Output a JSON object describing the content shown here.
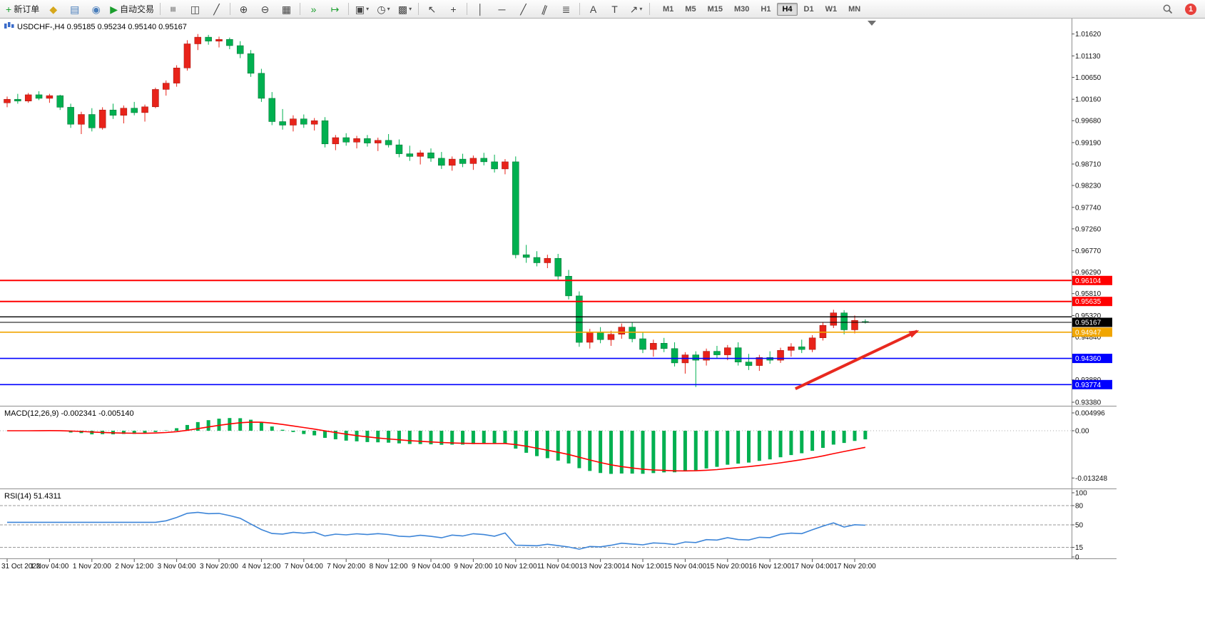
{
  "toolbar": {
    "items": [
      {
        "name": "new-order-button",
        "glyph": "+",
        "color": "#1b9e2d",
        "label": "新订单"
      },
      {
        "name": "metaeditor-button",
        "glyph": "◆",
        "color": "#d6a71c"
      },
      {
        "name": "data-window-button",
        "glyph": "▤",
        "color": "#4a7ebb"
      },
      {
        "name": "community-button",
        "glyph": "◉",
        "color": "#4a7ebb"
      },
      {
        "name": "auto-trading-button",
        "glyph": "▶",
        "color": "#1b9e2d",
        "label": "自动交易"
      },
      {
        "sep": true
      },
      {
        "name": "bar-chart-button",
        "glyph": "≡",
        "rotate": 90
      },
      {
        "name": "candlestick-chart-button",
        "glyph": "◫"
      },
      {
        "name": "line-chart-button",
        "glyph": "╱"
      },
      {
        "sep": true
      },
      {
        "name": "zoom-in-button",
        "glyph": "⊕"
      },
      {
        "name": "zoom-out-button",
        "glyph": "⊖"
      },
      {
        "name": "tile-windows-button",
        "glyph": "▦"
      },
      {
        "sep": true
      },
      {
        "name": "auto-scroll-button",
        "glyph": "»",
        "color": "#1b9e2d"
      },
      {
        "name": "chart-shift-button",
        "glyph": "↦",
        "color": "#1b9e2d"
      },
      {
        "sep": true
      },
      {
        "name": "new-chart-button",
        "glyph": "▣",
        "dropdown": true
      },
      {
        "name": "periods-button",
        "glyph": "◷",
        "dropdown": true
      },
      {
        "name": "templates-button",
        "glyph": "▩",
        "dropdown": true
      },
      {
        "sep": true
      },
      {
        "name": "cursor-button",
        "glyph": "↖"
      },
      {
        "name": "crosshair-button",
        "glyph": "+"
      },
      {
        "sep": true
      },
      {
        "name": "vertical-line-button",
        "glyph": "│"
      },
      {
        "name": "horizontal-line-button",
        "glyph": "─"
      },
      {
        "name": "trendline-button",
        "glyph": "╱"
      },
      {
        "name": "equidistant-channel-button",
        "glyph": "∥",
        "rotate": 20
      },
      {
        "name": "fibonacci-button",
        "glyph": "≣"
      },
      {
        "sep": true
      },
      {
        "name": "text-button",
        "glyph": "A"
      },
      {
        "name": "text-label-button",
        "glyph": "T"
      },
      {
        "name": "arrows-button",
        "glyph": "↗",
        "dropdown": true
      },
      {
        "sep": true
      }
    ],
    "timeframes": {
      "items": [
        "M1",
        "M5",
        "M15",
        "M30",
        "H1",
        "H4",
        "D1",
        "W1",
        "MN"
      ],
      "active": "H4"
    },
    "notification_count": "1"
  },
  "chart": {
    "symbol": "USDCHF-",
    "period": "H4",
    "ohlc": {
      "open": "0.95185",
      "high": "0.95234",
      "low": "0.95140",
      "close": "0.95167"
    },
    "title_text": "USDCHF-,H4 0.95185 0.95234 0.95140 0.95167",
    "macd_title_text": "MACD(12,26,9) -0.002341 -0.005140",
    "rsi_title_text": "RSI(14) 51.4311"
  },
  "chart_data": [
    {
      "type": "candlestick",
      "title": "USDCHF-,H4",
      "up_color": "#e8231a",
      "up_stroke": "#9d0f09",
      "down_color": "#00b050",
      "down_stroke": "#006b30",
      "ylim": [
        0.9338,
        1.0187
      ],
      "y_axis": [
        "1.01620",
        "1.01130",
        "1.00650",
        "1.00160",
        "0.99680",
        "0.99190",
        "0.98710",
        "0.98230",
        "0.97740",
        "0.97260",
        "0.96770",
        "0.96290",
        "0.95810",
        "0.95320",
        "0.94840",
        "0.94360",
        "0.93880",
        "0.93380"
      ],
      "x_labels": [
        "31 Oct 2022",
        "1 Nov 04:00",
        "1 Nov 20:00",
        "2 Nov 12:00",
        "3 Nov 04:00",
        "3 Nov 20:00",
        "4 Nov 12:00",
        "7 Nov 04:00",
        "7 Nov 20:00",
        "8 Nov 12:00",
        "9 Nov 04:00",
        "9 Nov 20:00",
        "10 Nov 12:00",
        "11 Nov 04:00",
        "13 Nov 23:00",
        "14 Nov 12:00",
        "15 Nov 04:00",
        "15 Nov 20:00",
        "16 Nov 12:00",
        "17 Nov 04:00",
        "17 Nov 20:00"
      ],
      "x_label_step": 4,
      "candles": [
        [
          1.0008,
          1.0022,
          0.9998,
          1.0016
        ],
        [
          1.0016,
          1.0028,
          1.0006,
          1.0012
        ],
        [
          1.0012,
          1.003,
          1.0008,
          1.0026
        ],
        [
          1.0026,
          1.0034,
          1.0014,
          1.0018
        ],
        [
          1.0018,
          1.0028,
          1.0008,
          1.0024
        ],
        [
          1.0024,
          1.0026,
          0.9992,
          0.9998
        ],
        [
          0.9998,
          1.0006,
          0.9952,
          0.996
        ],
        [
          0.996,
          0.9988,
          0.9938,
          0.9982
        ],
        [
          0.9982,
          0.9996,
          0.9944,
          0.9952
        ],
        [
          0.9952,
          0.9998,
          0.9948,
          0.9992
        ],
        [
          0.9992,
          1.0006,
          0.9972,
          0.998
        ],
        [
          0.998,
          1.0002,
          0.9962,
          0.9996
        ],
        [
          0.9996,
          1.001,
          0.998,
          0.9986
        ],
        [
          0.9986,
          1.0004,
          0.9966,
          0.9999
        ],
        [
          0.9999,
          1.0042,
          0.9996,
          1.0038
        ],
        [
          1.0038,
          1.0058,
          1.0024,
          1.0052
        ],
        [
          1.0052,
          1.0092,
          1.0044,
          1.0086
        ],
        [
          1.0086,
          1.0148,
          1.008,
          1.014
        ],
        [
          1.014,
          1.0162,
          1.0126,
          1.0155
        ],
        [
          1.0155,
          1.016,
          1.0138,
          1.0146
        ],
        [
          1.0146,
          1.0156,
          1.0132,
          1.015
        ],
        [
          1.015,
          1.0154,
          1.0128,
          1.0136
        ],
        [
          1.0136,
          1.0146,
          1.0108,
          1.0118
        ],
        [
          1.0118,
          1.0126,
          1.0066,
          1.0074
        ],
        [
          1.0074,
          1.0084,
          1.001,
          1.0018
        ],
        [
          1.0018,
          1.0032,
          0.9958,
          0.9966
        ],
        [
          0.9966,
          0.9994,
          0.9948,
          0.9958
        ],
        [
          0.9958,
          0.998,
          0.9944,
          0.9972
        ],
        [
          0.9972,
          0.9982,
          0.9952,
          0.996
        ],
        [
          0.996,
          0.9974,
          0.9946,
          0.9968
        ],
        [
          0.9968,
          0.9976,
          0.9908,
          0.9916
        ],
        [
          0.9916,
          0.9936,
          0.9902,
          0.993
        ],
        [
          0.993,
          0.994,
          0.9912,
          0.992
        ],
        [
          0.992,
          0.9934,
          0.9906,
          0.9928
        ],
        [
          0.9928,
          0.9936,
          0.991,
          0.9918
        ],
        [
          0.9918,
          0.993,
          0.99,
          0.9924
        ],
        [
          0.9924,
          0.9938,
          0.9908,
          0.9914
        ],
        [
          0.9914,
          0.9926,
          0.9886,
          0.9894
        ],
        [
          0.9894,
          0.9912,
          0.9878,
          0.9888
        ],
        [
          0.9888,
          0.9902,
          0.987,
          0.9896
        ],
        [
          0.9896,
          0.9906,
          0.9876,
          0.9884
        ],
        [
          0.9884,
          0.9898,
          0.986,
          0.9868
        ],
        [
          0.9868,
          0.9888,
          0.9856,
          0.9882
        ],
        [
          0.9882,
          0.9894,
          0.9864,
          0.9872
        ],
        [
          0.9872,
          0.989,
          0.9858,
          0.9884
        ],
        [
          0.9884,
          0.9896,
          0.9868,
          0.9876
        ],
        [
          0.9876,
          0.9892,
          0.9852,
          0.986
        ],
        [
          0.986,
          0.9882,
          0.9848,
          0.9876
        ],
        [
          0.9876,
          0.9888,
          0.966,
          0.9668
        ],
        [
          0.9668,
          0.969,
          0.965,
          0.9662
        ],
        [
          0.9662,
          0.9676,
          0.9642,
          0.965
        ],
        [
          0.965,
          0.9668,
          0.9638,
          0.966
        ],
        [
          0.966,
          0.967,
          0.9612,
          0.962
        ],
        [
          0.962,
          0.9634,
          0.9568,
          0.9576
        ],
        [
          0.9576,
          0.9586,
          0.9462,
          0.9472
        ],
        [
          0.9472,
          0.9502,
          0.9458,
          0.9494
        ],
        [
          0.9494,
          0.9506,
          0.947,
          0.9478
        ],
        [
          0.9478,
          0.9498,
          0.9464,
          0.949
        ],
        [
          0.949,
          0.9514,
          0.948,
          0.9506
        ],
        [
          0.9506,
          0.9516,
          0.9472,
          0.948
        ],
        [
          0.948,
          0.9494,
          0.9448,
          0.9456
        ],
        [
          0.9456,
          0.9478,
          0.944,
          0.947
        ],
        [
          0.947,
          0.9482,
          0.945,
          0.9458
        ],
        [
          0.9458,
          0.9472,
          0.9418,
          0.9426
        ],
        [
          0.9426,
          0.945,
          0.9402,
          0.9444
        ],
        [
          0.9444,
          0.9452,
          0.9372,
          0.9432
        ],
        [
          0.9432,
          0.9458,
          0.942,
          0.9452
        ],
        [
          0.9452,
          0.9464,
          0.9436,
          0.9444
        ],
        [
          0.9444,
          0.9466,
          0.9432,
          0.946
        ],
        [
          0.946,
          0.9472,
          0.942,
          0.9428
        ],
        [
          0.9428,
          0.9446,
          0.941,
          0.942
        ],
        [
          0.942,
          0.9444,
          0.9408,
          0.9438
        ],
        [
          0.9438,
          0.9452,
          0.9424,
          0.9432
        ],
        [
          0.9432,
          0.946,
          0.9426,
          0.9454
        ],
        [
          0.9454,
          0.947,
          0.944,
          0.9462
        ],
        [
          0.9462,
          0.9478,
          0.9448,
          0.9456
        ],
        [
          0.9456,
          0.9488,
          0.945,
          0.9482
        ],
        [
          0.9482,
          0.9516,
          0.9476,
          0.951
        ],
        [
          0.951,
          0.9545,
          0.9504,
          0.9538
        ],
        [
          0.9538,
          0.9544,
          0.949,
          0.95
        ],
        [
          0.95,
          0.9532,
          0.9492,
          0.9521
        ],
        [
          0.95185,
          0.95234,
          0.9514,
          0.95167
        ]
      ],
      "levels": [
        {
          "name": "resistance-line-1",
          "price": 0.96104,
          "label": "0.96104",
          "color": "#ff0000",
          "width": 2
        },
        {
          "name": "resistance-line-2",
          "price": 0.95635,
          "label": "0.95635",
          "color": "#ff0000",
          "width": 2
        },
        {
          "name": "black-horizontal-line",
          "price": 0.9529,
          "label": "",
          "color": "#000000",
          "width": 1.4
        },
        {
          "name": "current-price-line",
          "price": 0.95167,
          "label": "0.95167",
          "color": "#000000",
          "width": 1
        },
        {
          "name": "orange-support-line",
          "price": 0.94947,
          "label": "0.94947",
          "color": "#f0a500",
          "width": 1.6
        },
        {
          "name": "support-line-1",
          "price": 0.9436,
          "label": "0.94360",
          "color": "#0000ff",
          "width": 1.6
        },
        {
          "name": "support-line-2",
          "price": 0.93774,
          "label": "0.93774",
          "color": "#0000ff",
          "width": 1.6
        }
      ],
      "arrow": {
        "from_bar": 74.4,
        "from_price": 0.9368,
        "to_bar": 85.9,
        "to_price": 0.9497,
        "color": "#e8291f"
      }
    },
    {
      "type": "macd-histogram",
      "title": "MACD(12,26,9)",
      "values_text": "-0.002341 -0.005140",
      "macd_value": -0.002341,
      "signal_value": -0.00514,
      "params": {
        "fast": 12,
        "slow": 26,
        "signal": 9
      },
      "y_axis": [
        "0.004996",
        "0.00",
        "-0.013248"
      ],
      "histogram_color": "#00b050",
      "signal_color": "#ff0000"
    },
    {
      "type": "rsi",
      "title": "RSI(14)",
      "value_text": "51.4311",
      "value": 51.4311,
      "period": 14,
      "levels": [
        80,
        50,
        15
      ],
      "y_axis": [
        "100",
        "80",
        "50",
        "15",
        "0"
      ],
      "line_color": "#3d85d8"
    }
  ]
}
